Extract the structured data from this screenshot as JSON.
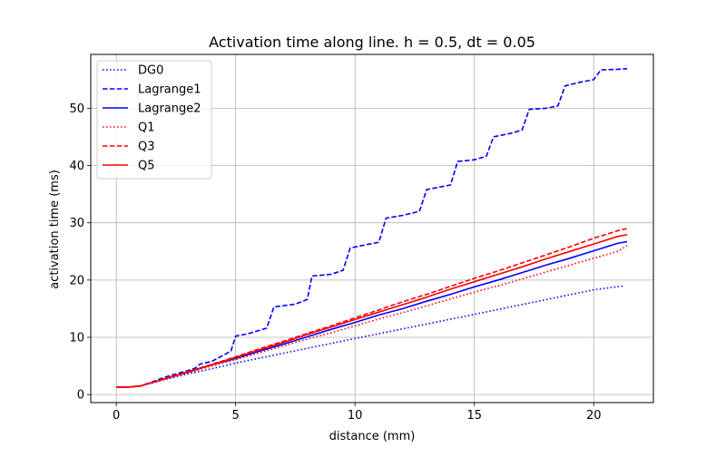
{
  "chart_data": {
    "type": "line",
    "title": "Activation time along line. h = 0.5, dt = 0.05",
    "xlabel": "distance (mm)",
    "ylabel": "activation time (ms)",
    "xlim": [
      -1.07,
      22.5
    ],
    "ylim": [
      -1.4,
      59.4
    ],
    "xticks": [
      0,
      5,
      10,
      15,
      20
    ],
    "yticks": [
      0,
      10,
      20,
      30,
      40,
      50
    ],
    "grid": true,
    "legend_position": "top-left",
    "series": [
      {
        "name": "DG0",
        "color": "#0000ff",
        "dash": "dotted",
        "points": [
          [
            0,
            1.3
          ],
          [
            0.5,
            1.3
          ],
          [
            1,
            1.5
          ],
          [
            1.5,
            2.0
          ],
          [
            2,
            2.6
          ],
          [
            3,
            3.6
          ],
          [
            4,
            4.5
          ],
          [
            5,
            5.5
          ],
          [
            10,
            9.8
          ],
          [
            15,
            14.0
          ],
          [
            20,
            18.3
          ],
          [
            21.3,
            19.0
          ]
        ]
      },
      {
        "name": "Lagrange1",
        "color": "#0000ff",
        "dash": "dashed",
        "points": [
          [
            0,
            1.3
          ],
          [
            0.5,
            1.3
          ],
          [
            1,
            1.5
          ],
          [
            1.5,
            2.2
          ],
          [
            2,
            3.0
          ],
          [
            2.5,
            3.6
          ],
          [
            3,
            4.2
          ],
          [
            3.3,
            4.6
          ],
          [
            3.5,
            5.3
          ],
          [
            4,
            5.8
          ],
          [
            4.5,
            6.9
          ],
          [
            4.8,
            7.6
          ],
          [
            5,
            10.2
          ],
          [
            5.5,
            10.6
          ],
          [
            6.3,
            11.6
          ],
          [
            6.6,
            15.3
          ],
          [
            7.5,
            15.8
          ],
          [
            8,
            16.6
          ],
          [
            8.2,
            20.7
          ],
          [
            9,
            21.0
          ],
          [
            9.5,
            21.7
          ],
          [
            9.8,
            25.6
          ],
          [
            10.5,
            26.2
          ],
          [
            11,
            26.6
          ],
          [
            11.3,
            30.8
          ],
          [
            12,
            31.3
          ],
          [
            12.7,
            32.0
          ],
          [
            13,
            35.8
          ],
          [
            13.5,
            36.2
          ],
          [
            14,
            36.6
          ],
          [
            14.3,
            40.7
          ],
          [
            15,
            41.0
          ],
          [
            15.5,
            41.6
          ],
          [
            15.8,
            45.0
          ],
          [
            16.5,
            45.6
          ],
          [
            17,
            46.2
          ],
          [
            17.3,
            49.8
          ],
          [
            18,
            50.0
          ],
          [
            18.5,
            50.4
          ],
          [
            18.8,
            53.9
          ],
          [
            19.5,
            54.6
          ],
          [
            20,
            55.0
          ],
          [
            20.3,
            56.7
          ],
          [
            21,
            56.8
          ],
          [
            21.4,
            56.9
          ]
        ]
      },
      {
        "name": "Lagrange2",
        "color": "#0000ff",
        "dash": "solid",
        "points": [
          [
            0,
            1.3
          ],
          [
            0.5,
            1.3
          ],
          [
            1,
            1.5
          ],
          [
            1.5,
            2.1
          ],
          [
            2,
            2.7
          ],
          [
            3,
            3.9
          ],
          [
            4,
            5.2
          ],
          [
            5,
            6.3
          ],
          [
            6,
            7.6
          ],
          [
            7,
            8.8
          ],
          [
            8,
            10.1
          ],
          [
            9,
            11.4
          ],
          [
            10,
            12.6
          ],
          [
            11,
            13.9
          ],
          [
            12,
            15.0
          ],
          [
            13,
            16.3
          ],
          [
            14,
            17.5
          ],
          [
            15,
            18.8
          ],
          [
            16,
            20.0
          ],
          [
            17,
            21.3
          ],
          [
            18,
            22.6
          ],
          [
            19,
            23.8
          ],
          [
            20,
            25.1
          ],
          [
            21,
            26.4
          ],
          [
            21.4,
            26.7
          ]
        ]
      },
      {
        "name": "Q1",
        "color": "#ff0000",
        "dash": "dotted",
        "points": [
          [
            0,
            1.3
          ],
          [
            0.5,
            1.3
          ],
          [
            1,
            1.5
          ],
          [
            1.5,
            2.1
          ],
          [
            2,
            2.7
          ],
          [
            3,
            3.8
          ],
          [
            4,
            5.0
          ],
          [
            5,
            6.1
          ],
          [
            6,
            7.3
          ],
          [
            7,
            8.5
          ],
          [
            8,
            9.7
          ],
          [
            9,
            10.8
          ],
          [
            10,
            12.0
          ],
          [
            11,
            13.2
          ],
          [
            12,
            14.3
          ],
          [
            13,
            15.5
          ],
          [
            14,
            16.7
          ],
          [
            15,
            17.9
          ],
          [
            16,
            19.0
          ],
          [
            17,
            20.2
          ],
          [
            18,
            21.4
          ],
          [
            19,
            22.6
          ],
          [
            20,
            23.8
          ],
          [
            21,
            25.0
          ],
          [
            21.4,
            26.0
          ]
        ]
      },
      {
        "name": "Q3",
        "color": "#ff0000",
        "dash": "dashed",
        "points": [
          [
            0,
            1.3
          ],
          [
            0.5,
            1.3
          ],
          [
            1,
            1.5
          ],
          [
            1.5,
            2.1
          ],
          [
            2,
            2.8
          ],
          [
            3,
            4.0
          ],
          [
            4,
            5.3
          ],
          [
            5,
            6.6
          ],
          [
            6,
            8.0
          ],
          [
            7,
            9.3
          ],
          [
            8,
            10.7
          ],
          [
            9,
            12.0
          ],
          [
            10,
            13.4
          ],
          [
            11,
            14.8
          ],
          [
            12,
            16.2
          ],
          [
            13,
            17.5
          ],
          [
            14,
            18.9
          ],
          [
            15,
            20.3
          ],
          [
            16,
            21.6
          ],
          [
            17,
            23.0
          ],
          [
            18,
            24.4
          ],
          [
            19,
            25.8
          ],
          [
            20,
            27.3
          ],
          [
            21,
            28.6
          ],
          [
            21.4,
            29.0
          ]
        ]
      },
      {
        "name": "Q5",
        "color": "#ff0000",
        "dash": "solid",
        "points": [
          [
            0,
            1.3
          ],
          [
            0.5,
            1.3
          ],
          [
            1,
            1.5
          ],
          [
            1.5,
            2.1
          ],
          [
            2,
            2.7
          ],
          [
            3,
            4.0
          ],
          [
            4,
            5.2
          ],
          [
            5,
            6.5
          ],
          [
            6,
            7.8
          ],
          [
            7,
            9.1
          ],
          [
            8,
            10.5
          ],
          [
            9,
            11.8
          ],
          [
            10,
            13.1
          ],
          [
            11,
            14.4
          ],
          [
            12,
            15.7
          ],
          [
            13,
            17.0
          ],
          [
            14,
            18.4
          ],
          [
            15,
            19.7
          ],
          [
            16,
            21.0
          ],
          [
            17,
            22.3
          ],
          [
            18,
            23.7
          ],
          [
            19,
            25.0
          ],
          [
            20,
            26.3
          ],
          [
            21,
            27.6
          ],
          [
            21.4,
            27.9
          ]
        ]
      }
    ]
  }
}
